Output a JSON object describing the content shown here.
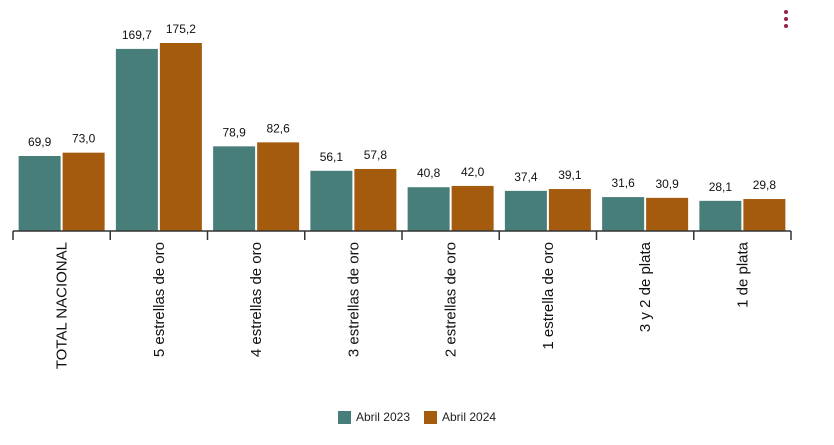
{
  "chart_data": {
    "type": "bar",
    "categories": [
      "TOTAL NACIONAL",
      "5 estrellas de oro",
      "4 estrellas de oro",
      "3 estrellas de oro",
      "2 estrellas de oro",
      "1 estrella de oro",
      "3 y 2 de plata",
      "1 de plata"
    ],
    "series": [
      {
        "name": "Abril 2023",
        "color": "#477e79",
        "values": [
          69.9,
          169.7,
          78.9,
          56.1,
          40.8,
          37.4,
          31.6,
          28.1
        ],
        "labels": [
          "69,9",
          "169,7",
          "78,9",
          "56,1",
          "40,8",
          "37,4",
          "31,6",
          "28,1"
        ]
      },
      {
        "name": "Abril 2024",
        "color": "#a55b0d",
        "values": [
          73.0,
          175.2,
          82.6,
          57.8,
          42.0,
          39.1,
          30.9,
          29.8
        ],
        "labels": [
          "73,0",
          "175,2",
          "82,6",
          "57,8",
          "42,0",
          "39,1",
          "30,9",
          "29,8"
        ]
      }
    ],
    "ylim": [
      0,
      175.2
    ],
    "grid": false,
    "legend_position": "bottom"
  },
  "menu": {
    "icon": "kebab-menu-icon",
    "color": "#9b2247"
  }
}
